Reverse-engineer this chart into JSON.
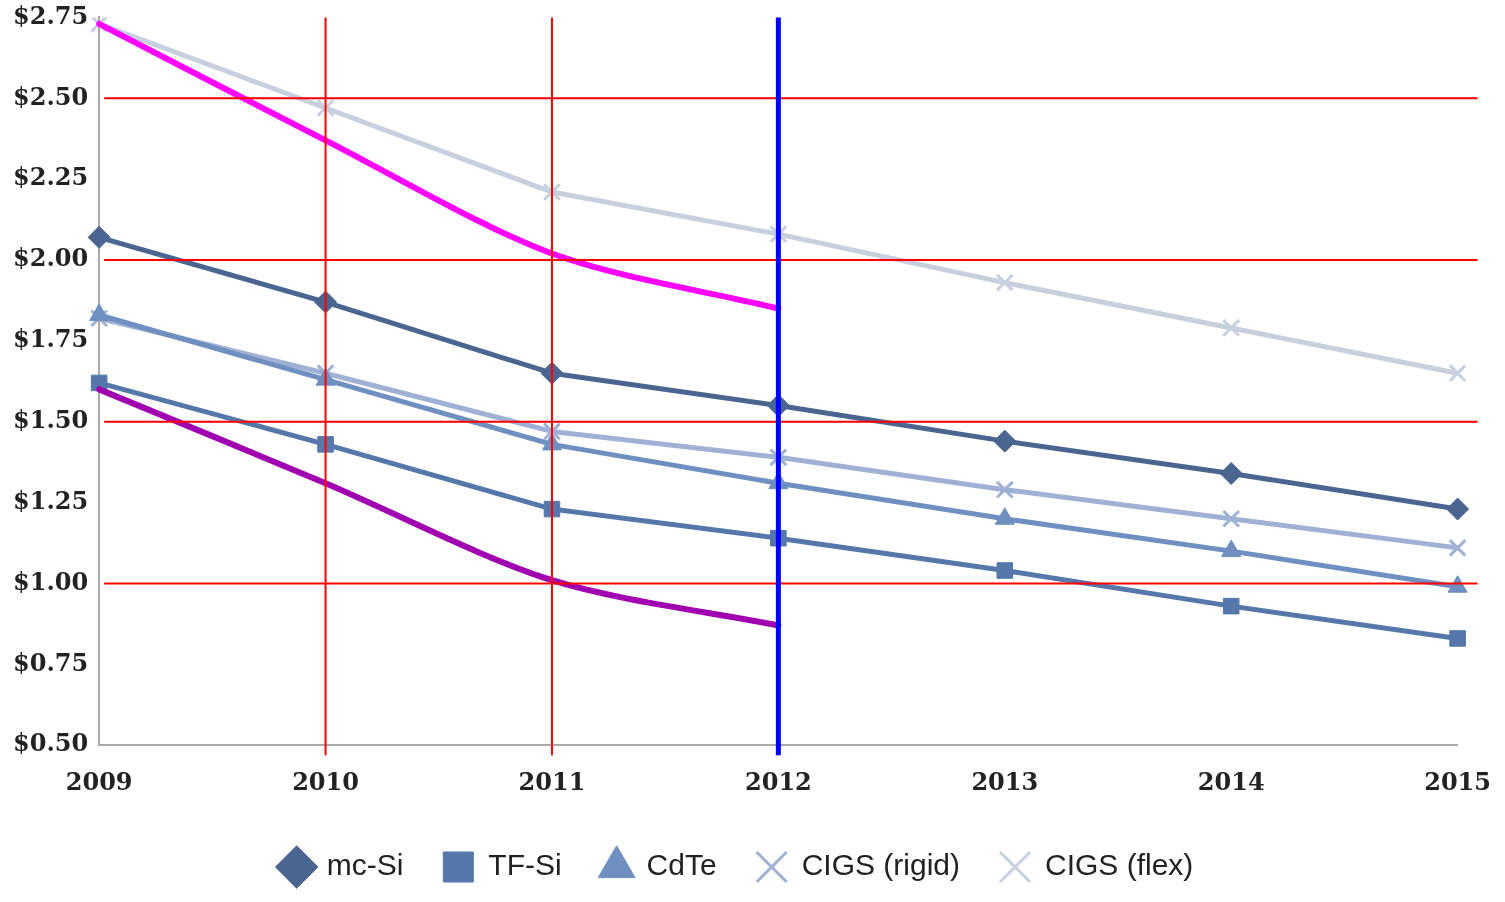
{
  "chart_data": {
    "type": "line",
    "categories": [
      "2009",
      "2010",
      "2011",
      "2012",
      "2013",
      "2014",
      "2015"
    ],
    "series": [
      {
        "name": "mc-Si",
        "color": "#4a6590",
        "marker": "diamond",
        "values": [
          2.07,
          1.87,
          1.65,
          1.55,
          1.44,
          1.34,
          1.23
        ]
      },
      {
        "name": "TF-Si",
        "color": "#5577aa",
        "marker": "square",
        "values": [
          1.62,
          1.43,
          1.23,
          1.14,
          1.04,
          0.93,
          0.83
        ]
      },
      {
        "name": "CdTe",
        "color": "#6e8fc0",
        "marker": "triangle",
        "values": [
          1.83,
          1.63,
          1.43,
          1.31,
          1.2,
          1.1,
          0.99
        ]
      },
      {
        "name": "CIGS (rigid)",
        "color": "#9fb1d4",
        "marker": "cross",
        "values": [
          1.82,
          1.65,
          1.47,
          1.39,
          1.29,
          1.2,
          1.11
        ]
      },
      {
        "name": "CIGS (flex)",
        "color": "#c8d0e0",
        "marker": "cross",
        "values": [
          2.73,
          2.47,
          2.21,
          2.08,
          1.93,
          1.79,
          1.65
        ]
      },
      {
        "color": "#ff00ff",
        "marker": "none",
        "values": [
          2.73,
          2.37,
          2.02,
          1.85,
          null,
          null,
          null
        ]
      },
      {
        "color": "#a000b0",
        "marker": "none",
        "values": [
          1.6,
          1.31,
          1.01,
          0.87,
          null,
          null,
          null
        ]
      }
    ],
    "ylim": [
      0.5,
      2.75
    ],
    "yticks": [
      {
        "value": 0.5,
        "label": "$0.50"
      },
      {
        "value": 0.75,
        "label": "$0.75"
      },
      {
        "value": 1,
        "label": "$1.00"
      },
      {
        "value": 1.25,
        "label": "$1.25"
      },
      {
        "value": 1.5,
        "label": "$1.50"
      },
      {
        "value": 1.75,
        "label": "$1.75"
      },
      {
        "value": 2,
        "label": "$2.00"
      },
      {
        "value": 2.25,
        "label": "$2.25"
      },
      {
        "value": 2.5,
        "label": "$2.50"
      },
      {
        "value": 2.75,
        "label": "$2.75"
      }
    ],
    "ref_lines": [
      {
        "axis": "y",
        "value": 2.5,
        "color": "#ff0000"
      },
      {
        "axis": "y",
        "value": 2,
        "color": "#ff0000"
      },
      {
        "axis": "y",
        "value": 1.5,
        "color": "#ff0000"
      },
      {
        "axis": "y",
        "value": 1,
        "color": "#ff0000"
      },
      {
        "axis": "x",
        "value": "2010",
        "color": "#ff0000"
      },
      {
        "axis": "x",
        "value": "2011",
        "color": "#ff0000"
      },
      {
        "axis": "x",
        "value": "2012",
        "color": "#0000ff"
      }
    ],
    "grid": false,
    "legend": "bottom"
  }
}
